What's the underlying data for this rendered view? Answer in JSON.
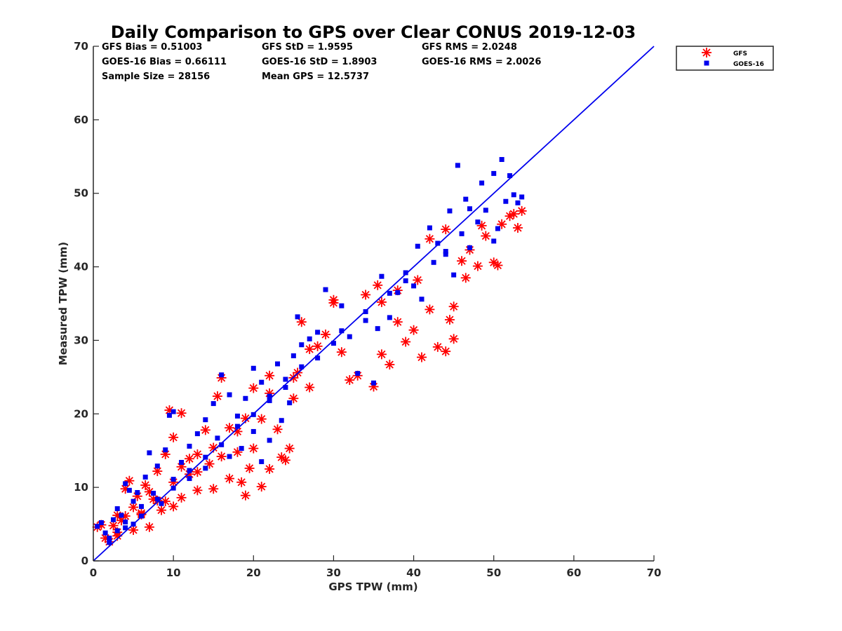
{
  "chart_data": {
    "type": "scatter",
    "title": "Daily Comparison to GPS over Clear CONUS 2019-12-03",
    "xlabel": "GPS TPW (mm)",
    "ylabel": "Measured TPW (mm)",
    "xlim": [
      0,
      70
    ],
    "ylim": [
      0,
      70
    ],
    "xticks": [
      0,
      10,
      20,
      30,
      40,
      50,
      60,
      70
    ],
    "yticks": [
      0,
      10,
      20,
      30,
      40,
      50,
      60,
      70
    ],
    "grid": false,
    "legend_position": "outside-top-right",
    "stats": [
      [
        "GFS Bias = 0.51003",
        "GFS StD = 1.9595",
        "GFS RMS = 2.0248"
      ],
      [
        "GOES-16 Bias = 0.66111",
        "GOES-16 StD = 1.8903",
        "GOES-16 RMS = 2.0026"
      ],
      [
        "Sample Size = 28156",
        "Mean GPS = 12.5737"
      ]
    ],
    "reference_line": {
      "name": "1:1 line",
      "x": [
        0,
        70
      ],
      "y": [
        0,
        70
      ],
      "color": "#0000ee"
    },
    "series": [
      {
        "name": "GFS",
        "marker": "asterisk",
        "color": "#ff0000",
        "points": [
          [
            0.5,
            4.6
          ],
          [
            1,
            4.9
          ],
          [
            1.5,
            3.1
          ],
          [
            2,
            2.6
          ],
          [
            2.5,
            4.8
          ],
          [
            3,
            6.2
          ],
          [
            3,
            3.4
          ],
          [
            3.5,
            5.5
          ],
          [
            4,
            9.8
          ],
          [
            4,
            6.1
          ],
          [
            4.5,
            10.9
          ],
          [
            5,
            7.3
          ],
          [
            5,
            4.2
          ],
          [
            5.5,
            8.8
          ],
          [
            6,
            6.5
          ],
          [
            6.5,
            10.3
          ],
          [
            7,
            4.6
          ],
          [
            7.5,
            8.4
          ],
          [
            8,
            12.2
          ],
          [
            8.5,
            6.9
          ],
          [
            9,
            14.5
          ],
          [
            9.5,
            20.5
          ],
          [
            10,
            16.8
          ],
          [
            10,
            7.4
          ],
          [
            11,
            20.1
          ],
          [
            11,
            8.6
          ],
          [
            12,
            13.9
          ],
          [
            13,
            12.1
          ],
          [
            13,
            9.6
          ],
          [
            14,
            17.8
          ],
          [
            14.5,
            13.2
          ],
          [
            15,
            9.8
          ],
          [
            15.5,
            22.4
          ],
          [
            16,
            24.9
          ],
          [
            17,
            11.2
          ],
          [
            17,
            18.1
          ],
          [
            18,
            14.8
          ],
          [
            18.5,
            10.7
          ],
          [
            19,
            8.9
          ],
          [
            19.5,
            12.6
          ],
          [
            20,
            15.3
          ],
          [
            20,
            23.5
          ],
          [
            21,
            10.1
          ],
          [
            21,
            19.3
          ],
          [
            22,
            12.5
          ],
          [
            22,
            25.2
          ],
          [
            23,
            17.9
          ],
          [
            23.5,
            14.1
          ],
          [
            24,
            13.7
          ],
          [
            24.5,
            15.3
          ],
          [
            25,
            22.1
          ],
          [
            25.5,
            25.6
          ],
          [
            26,
            32.5
          ],
          [
            27,
            23.6
          ],
          [
            28,
            29.2
          ],
          [
            29,
            30.8
          ],
          [
            30,
            35.5
          ],
          [
            31,
            28.4
          ],
          [
            32,
            24.6
          ],
          [
            33,
            25.2
          ],
          [
            34,
            36.2
          ],
          [
            35,
            23.7
          ],
          [
            35.5,
            37.5
          ],
          [
            36,
            28.1
          ],
          [
            37,
            26.7
          ],
          [
            38,
            32.5
          ],
          [
            39,
            29.8
          ],
          [
            40,
            31.4
          ],
          [
            40.5,
            38.2
          ],
          [
            41,
            27.7
          ],
          [
            42,
            34.2
          ],
          [
            43,
            29.1
          ],
          [
            44,
            28.5
          ],
          [
            44.5,
            32.8
          ],
          [
            45,
            34.6
          ],
          [
            45,
            30.2
          ],
          [
            46,
            40.8
          ],
          [
            46.5,
            38.5
          ],
          [
            47,
            42.3
          ],
          [
            48,
            40.1
          ],
          [
            48.5,
            45.6
          ],
          [
            49,
            44.2
          ],
          [
            50,
            40.6
          ],
          [
            50.5,
            40.2
          ],
          [
            51,
            45.8
          ],
          [
            52,
            46.9
          ],
          [
            52.5,
            47.2
          ],
          [
            53,
            45.3
          ],
          [
            53.5,
            47.6
          ],
          [
            44,
            45.1
          ],
          [
            42,
            43.8
          ],
          [
            38,
            36.8
          ],
          [
            36,
            35.2
          ],
          [
            30,
            35.1
          ],
          [
            27,
            28.8
          ],
          [
            25,
            24.9
          ],
          [
            22,
            22.8
          ],
          [
            18,
            17.6
          ],
          [
            15,
            15.4
          ],
          [
            12,
            11.8
          ],
          [
            10,
            10.7
          ],
          [
            8,
            8.2
          ],
          [
            6,
            6.3
          ],
          [
            3,
            3.9
          ],
          [
            7,
            9.4
          ],
          [
            9,
            8.1
          ],
          [
            11,
            12.8
          ],
          [
            13,
            14.5
          ],
          [
            16,
            14.2
          ],
          [
            19,
            19.4
          ]
        ]
      },
      {
        "name": "GOES-16",
        "marker": "square",
        "color": "#0000ee",
        "points": [
          [
            0.5,
            4.7
          ],
          [
            1,
            5.2
          ],
          [
            1.5,
            3.8
          ],
          [
            2,
            2.5
          ],
          [
            2.5,
            5.6
          ],
          [
            3,
            7.1
          ],
          [
            3,
            4.1
          ],
          [
            3.5,
            6.2
          ],
          [
            4,
            10.5
          ],
          [
            4,
            5.3
          ],
          [
            4.5,
            9.6
          ],
          [
            5,
            8.1
          ],
          [
            5,
            5.0
          ],
          [
            5.5,
            9.3
          ],
          [
            6,
            7.4
          ],
          [
            6.5,
            11.4
          ],
          [
            7,
            14.7
          ],
          [
            7.5,
            9.2
          ],
          [
            8,
            12.9
          ],
          [
            8.5,
            7.8
          ],
          [
            9,
            15.1
          ],
          [
            9.5,
            19.8
          ],
          [
            10,
            11.1
          ],
          [
            10,
            20.3
          ],
          [
            11,
            13.4
          ],
          [
            12,
            15.6
          ],
          [
            12,
            11.2
          ],
          [
            13,
            17.3
          ],
          [
            14,
            19.2
          ],
          [
            14,
            12.6
          ],
          [
            15,
            21.4
          ],
          [
            15.5,
            16.7
          ],
          [
            16,
            25.3
          ],
          [
            17,
            14.2
          ],
          [
            17,
            22.6
          ],
          [
            18,
            19.7
          ],
          [
            18.5,
            15.3
          ],
          [
            19,
            22.1
          ],
          [
            20,
            26.2
          ],
          [
            20,
            17.6
          ],
          [
            21,
            24.3
          ],
          [
            21,
            13.5
          ],
          [
            22,
            21.8
          ],
          [
            22,
            16.4
          ],
          [
            23,
            26.8
          ],
          [
            23.5,
            19.1
          ],
          [
            24,
            24.7
          ],
          [
            24.5,
            21.5
          ],
          [
            25,
            27.9
          ],
          [
            25.5,
            33.2
          ],
          [
            26,
            29.4
          ],
          [
            27,
            30.2
          ],
          [
            28,
            31.1
          ],
          [
            29,
            36.9
          ],
          [
            30,
            29.6
          ],
          [
            31,
            34.7
          ],
          [
            32,
            30.5
          ],
          [
            33,
            25.5
          ],
          [
            34,
            33.9
          ],
          [
            35,
            24.2
          ],
          [
            35.5,
            31.6
          ],
          [
            36,
            38.7
          ],
          [
            37,
            33.1
          ],
          [
            38,
            36.5
          ],
          [
            39,
            39.2
          ],
          [
            40,
            37.4
          ],
          [
            40.5,
            42.8
          ],
          [
            41,
            35.6
          ],
          [
            42,
            45.3
          ],
          [
            42.5,
            40.6
          ],
          [
            43,
            43.2
          ],
          [
            44,
            41.7
          ],
          [
            44.5,
            47.6
          ],
          [
            45,
            38.9
          ],
          [
            45.5,
            53.8
          ],
          [
            46,
            44.5
          ],
          [
            46.5,
            49.2
          ],
          [
            47,
            42.6
          ],
          [
            48,
            46.1
          ],
          [
            48.5,
            51.4
          ],
          [
            49,
            47.7
          ],
          [
            50,
            52.7
          ],
          [
            50.5,
            45.2
          ],
          [
            51,
            54.6
          ],
          [
            51.5,
            48.9
          ],
          [
            52,
            52.4
          ],
          [
            52.5,
            49.8
          ],
          [
            53,
            48.7
          ],
          [
            53.5,
            49.5
          ],
          [
            50,
            43.5
          ],
          [
            47,
            47.9
          ],
          [
            44,
            42.1
          ],
          [
            39,
            38.1
          ],
          [
            37,
            36.4
          ],
          [
            34,
            32.7
          ],
          [
            31,
            31.3
          ],
          [
            28,
            27.6
          ],
          [
            26,
            26.4
          ],
          [
            24,
            23.6
          ],
          [
            22,
            22.4
          ],
          [
            20,
            19.9
          ],
          [
            18,
            18.3
          ],
          [
            16,
            15.8
          ],
          [
            14,
            14.1
          ],
          [
            12,
            12.3
          ],
          [
            10,
            9.9
          ],
          [
            8,
            8.4
          ],
          [
            6,
            6.1
          ],
          [
            4,
            4.5
          ],
          [
            2,
            3.1
          ]
        ]
      }
    ]
  }
}
